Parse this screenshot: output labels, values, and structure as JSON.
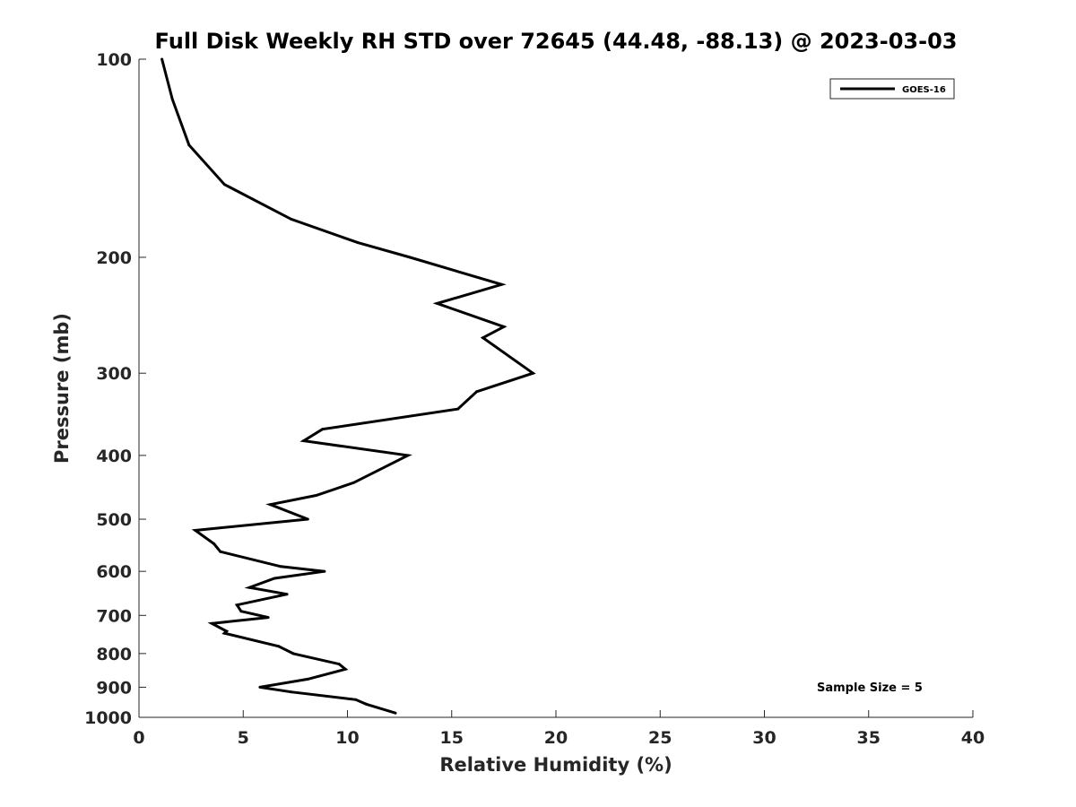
{
  "chart_data": {
    "type": "line",
    "title": "Full Disk Weekly RH STD over 72645 (44.48, -88.13) @ 2023-03-03",
    "xlabel": "Relative Humidity (%)",
    "ylabel": "Pressure (mb)",
    "xlim": [
      0,
      40
    ],
    "ylim": [
      1000,
      100
    ],
    "yscale": "log",
    "xticks": [
      0,
      5,
      10,
      15,
      20,
      25,
      30,
      35,
      40
    ],
    "yticks": [
      100,
      200,
      300,
      400,
      500,
      600,
      700,
      800,
      900,
      1000
    ],
    "legend_position": "top-right",
    "annotation": "Sample Size = 5",
    "series": [
      {
        "name": "GOES-16",
        "color": "#000000",
        "x": [
          1.1,
          1.6,
          2.4,
          4.1,
          7.3,
          10.5,
          13.0,
          17.4,
          14.3,
          17.5,
          16.5,
          18.9,
          16.2,
          15.3,
          8.8,
          7.9,
          12.9,
          10.3,
          8.5,
          6.3,
          8.1,
          2.7,
          3.6,
          3.9,
          6.8,
          8.9,
          6.5,
          5.3,
          7.1,
          4.7,
          4.9,
          6.2,
          3.5,
          4.2,
          4.1,
          6.7,
          7.4,
          9.6,
          9.9,
          8.1,
          5.8,
          7.3,
          10.4,
          10.9,
          12.3
        ],
        "y": [
          100,
          115,
          135,
          155,
          175,
          190,
          200,
          220,
          235,
          255,
          265,
          300,
          320,
          340,
          365,
          380,
          400,
          440,
          460,
          475,
          500,
          520,
          545,
          560,
          590,
          600,
          615,
          635,
          650,
          675,
          690,
          705,
          720,
          740,
          745,
          780,
          800,
          830,
          845,
          875,
          900,
          915,
          940,
          955,
          985
        ]
      }
    ]
  }
}
